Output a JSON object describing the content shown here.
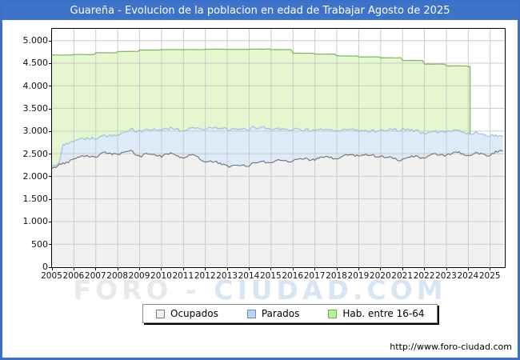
{
  "title_bar": {
    "text": "Guareña - Evolucion de la poblacion en edad de Trabajar Agosto de 2025"
  },
  "watermark": {
    "part1": "FORO",
    "sep": " - ",
    "part2": "CIUDAD.COM"
  },
  "footer": {
    "url": "http://www.foro-ciudad.com"
  },
  "legend": {
    "items": [
      {
        "label": "Ocupados",
        "swatch": "#f0f0f0",
        "swatch_border": "#7a7a7a"
      },
      {
        "label": "Parados",
        "swatch": "#b9d4ee",
        "swatch_border": "#6f8eb5"
      },
      {
        "label": "Hab. entre 16-64",
        "swatch": "#bdef90",
        "swatch_border": "#6fae4e"
      }
    ]
  },
  "colors": {
    "frame_blue": "#3a70c8",
    "titlebar_bg": "#3d74c9",
    "titlebar_fg": "#ffffff",
    "plot_border": "#000000",
    "grid": "#cbcbcb",
    "watermark_gray": "#e9e9e9",
    "watermark_blue": "#d7e5f5"
  },
  "x_axis": {
    "ticks": [
      "2005",
      "2006",
      "2007",
      "2008",
      "2009",
      "2010",
      "2011",
      "2012",
      "2013",
      "2014",
      "2015",
      "2016",
      "2017",
      "2018",
      "2019",
      "2020",
      "2021",
      "2022",
      "2023",
      "2024",
      "2025"
    ]
  },
  "y_axis": {
    "tick_values": [
      0,
      500,
      1000,
      1500,
      2000,
      2500,
      3000,
      3500,
      4000,
      4500,
      5000
    ],
    "tick_labels": [
      "0",
      "500",
      "1.000",
      "1.500",
      "2.000",
      "2.500",
      "3.000",
      "3.500",
      "4.000",
      "4.500",
      "5.000"
    ]
  },
  "chart_data": {
    "type": "area",
    "title": "Guareña - Evolucion de la poblacion en edad de Trabajar Agosto de 2025",
    "xlabel": "",
    "ylabel": "",
    "x_range": [
      2005,
      2025.667
    ],
    "y_range": [
      0,
      5260
    ],
    "grid": true,
    "legend_position": "bottom-center",
    "stacking_note": "Parados is stacked on top of Ocupados (blue band top = Ocupados + Parados); Hab. entre 16-64 is the total working-age population drawn behind; its data ends abruptly in early 2024.",
    "series": [
      {
        "name": "Hab. entre 16-64",
        "render": "step-area",
        "fill": "#e4f7cf",
        "line": "#7db55f",
        "years": [
          2005,
          2006,
          2007,
          2008,
          2009,
          2010,
          2011,
          2012,
          2013,
          2014,
          2015,
          2016,
          2017,
          2018,
          2019,
          2020,
          2021,
          2022,
          2023,
          2024
        ],
        "values": [
          4680,
          4690,
          4730,
          4760,
          4790,
          4800,
          4800,
          4810,
          4805,
          4810,
          4800,
          4720,
          4700,
          4660,
          4640,
          4620,
          4560,
          4480,
          4440,
          4420
        ],
        "end_x": 2024.083
      },
      {
        "name": "Ocupados",
        "render": "area",
        "fill": "#f1f1ef",
        "line": "#707070",
        "points": [
          [
            2005,
            2190
          ],
          [
            2005.3,
            2230
          ],
          [
            2005.6,
            2280
          ],
          [
            2006,
            2420
          ],
          [
            2006.5,
            2440
          ],
          [
            2007,
            2460
          ],
          [
            2007.5,
            2500
          ],
          [
            2008,
            2510
          ],
          [
            2008.6,
            2545
          ],
          [
            2009,
            2460
          ],
          [
            2009.5,
            2480
          ],
          [
            2010,
            2470
          ],
          [
            2010.5,
            2490
          ],
          [
            2011,
            2430
          ],
          [
            2011.5,
            2460
          ],
          [
            2012,
            2340
          ],
          [
            2012.5,
            2290
          ],
          [
            2013,
            2250
          ],
          [
            2013.4,
            2200
          ],
          [
            2014,
            2270
          ],
          [
            2014.5,
            2310
          ],
          [
            2015,
            2330
          ],
          [
            2015.5,
            2350
          ],
          [
            2016,
            2360
          ],
          [
            2016.5,
            2380
          ],
          [
            2017,
            2390
          ],
          [
            2017.5,
            2405
          ],
          [
            2018,
            2410
          ],
          [
            2018.8,
            2480
          ],
          [
            2019.3,
            2460
          ],
          [
            2020,
            2460
          ],
          [
            2020.4,
            2400
          ],
          [
            2021,
            2380
          ],
          [
            2021.5,
            2420
          ],
          [
            2022,
            2440
          ],
          [
            2022.5,
            2460
          ],
          [
            2023,
            2490
          ],
          [
            2023.5,
            2520
          ],
          [
            2024,
            2470
          ],
          [
            2024.5,
            2490
          ],
          [
            2025,
            2500
          ],
          [
            2025.583,
            2560
          ]
        ]
      },
      {
        "name": "Parados",
        "render": "area-stacked-on-ocupados",
        "fill": "#ddeaf8",
        "line": "#9dbce2",
        "points": [
          [
            2005,
            30
          ],
          [
            2005.33,
            40
          ],
          [
            2005.5,
            430
          ],
          [
            2006,
            390
          ],
          [
            2006.5,
            400
          ],
          [
            2007,
            390
          ],
          [
            2008,
            400
          ],
          [
            2008.7,
            490
          ],
          [
            2009,
            540
          ],
          [
            2009.5,
            550
          ],
          [
            2010,
            560
          ],
          [
            2010.5,
            575
          ],
          [
            2011,
            580
          ],
          [
            2011.5,
            620
          ],
          [
            2012,
            720
          ],
          [
            2012.4,
            760
          ],
          [
            2013,
            800
          ],
          [
            2013.5,
            810
          ],
          [
            2014,
            790
          ],
          [
            2014.5,
            770
          ],
          [
            2015,
            730
          ],
          [
            2015.5,
            700
          ],
          [
            2016,
            680
          ],
          [
            2016.5,
            650
          ],
          [
            2017,
            630
          ],
          [
            2017.5,
            610
          ],
          [
            2018,
            590
          ],
          [
            2018.5,
            570
          ],
          [
            2019,
            540
          ],
          [
            2019.5,
            545
          ],
          [
            2020,
            550
          ],
          [
            2020.4,
            630
          ],
          [
            2021,
            660
          ],
          [
            2021.5,
            590
          ],
          [
            2022,
            520
          ],
          [
            2022.5,
            515
          ],
          [
            2023,
            510
          ],
          [
            2023.5,
            495
          ],
          [
            2024,
            480
          ],
          [
            2024.5,
            450
          ],
          [
            2025,
            410
          ],
          [
            2025.583,
            320
          ]
        ]
      }
    ]
  }
}
